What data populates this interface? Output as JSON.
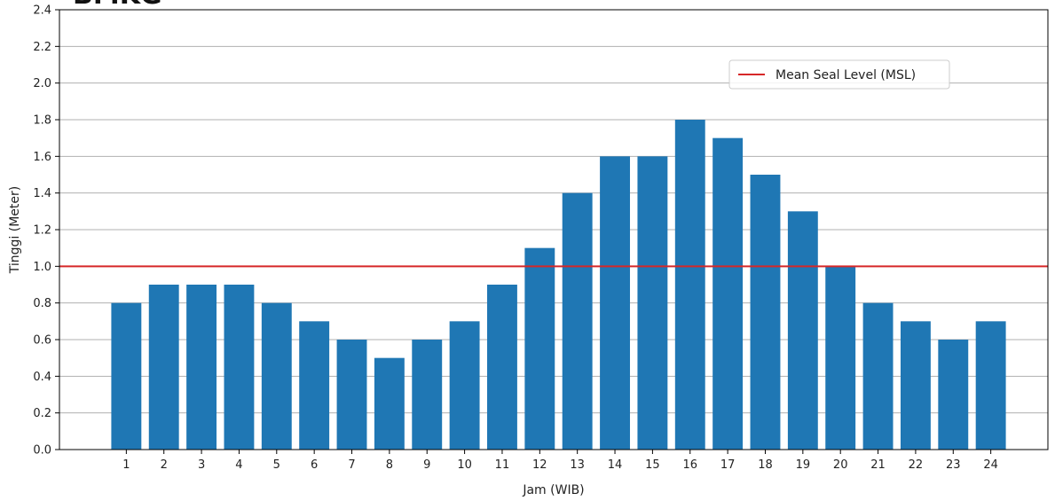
{
  "header": {
    "logo_text": "BMKG"
  },
  "chart_data": {
    "type": "bar",
    "categories": [
      "1",
      "2",
      "3",
      "4",
      "5",
      "6",
      "7",
      "8",
      "9",
      "10",
      "11",
      "12",
      "13",
      "14",
      "15",
      "16",
      "17",
      "18",
      "19",
      "20",
      "21",
      "22",
      "23",
      "24"
    ],
    "values": [
      0.8,
      0.9,
      0.9,
      0.9,
      0.8,
      0.7,
      0.6,
      0.5,
      0.6,
      0.7,
      0.9,
      1.1,
      1.4,
      1.6,
      1.6,
      1.8,
      1.7,
      1.5,
      1.3,
      1.0,
      0.8,
      0.7,
      0.6,
      0.7
    ],
    "xlabel": "Jam (WIB)",
    "ylabel": "Tinggi (Meter)",
    "ylim": [
      0.0,
      2.4
    ],
    "yticks": [
      "0.0",
      "0.2",
      "0.4",
      "0.6",
      "0.8",
      "1.0",
      "1.2",
      "1.4",
      "1.6",
      "1.8",
      "2.0",
      "2.2",
      "2.4"
    ],
    "grid": "horizontal",
    "bar_color": "#1f77b4",
    "reference_line": {
      "label": "Mean Seal Level (MSL)",
      "value": 1.0,
      "color": "#d62728"
    },
    "legend": {
      "position": "top-right",
      "entries": [
        "Mean Seal Level (MSL)"
      ]
    }
  }
}
